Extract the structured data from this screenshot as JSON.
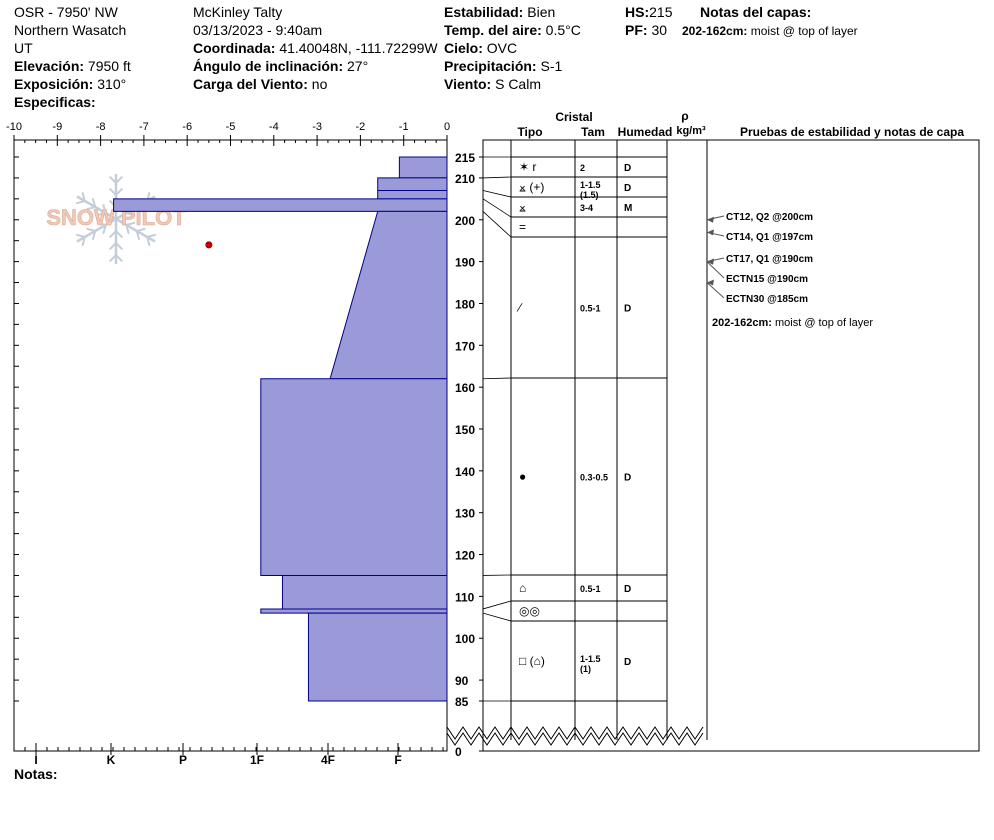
{
  "header": {
    "location": "OSR - 7950' NW",
    "range": "Northern Wasatch",
    "state": "UT",
    "elevation_label": "Elevación:",
    "elevation": "7950 ft",
    "aspect_label": "Exposición:",
    "aspect": "310°",
    "specifics_label": "Especificas:",
    "observer": "McKinley Talty",
    "datetime": "03/13/2023 - 9:40am",
    "coord_label": "Coordinada:",
    "coord": "41.40048N, -111.72299W",
    "slope_label": "Ángulo de inclinación:",
    "slope": "27°",
    "wind_load_label": "Carga del Viento:",
    "wind_load": "no",
    "stability_label": "Estabilidad:",
    "stability": "Bien",
    "air_temp_label": "Temp. del aire:",
    "air_temp": "0.5°C",
    "sky_label": "Cielo:",
    "sky": "OVC",
    "precip_label": "Precipitación:",
    "precip": "S-1",
    "wind_label": "Viento:",
    "wind": "S Calm",
    "hs_label": "HS:",
    "hs": "215",
    "pf_label": "PF:",
    "pf": "30",
    "layer_notes_label": "Notas del capas:",
    "layer_note_range": "202-162cm:",
    "layer_note_text": "moist @ top of layer"
  },
  "watermark": "SNOW PILOT",
  "notes_label": "Notas:",
  "colors": {
    "profile_fill": "#9a9ad8",
    "profile_stroke": "#00008b",
    "temp_point": "#cc0000",
    "test_arrow": "#555555"
  },
  "columns": {
    "crystal": "Cristal",
    "type": "Tipo",
    "size": "Tam",
    "moisture": "Humedad",
    "density_symbol": "ρ",
    "density_unit": "kg/m³",
    "tests": "Pruebas de estabilidad y notas de capa"
  },
  "chart_data": {
    "type": "snow-profile",
    "hardness_axis": {
      "label_ticks": [
        "-10",
        "-9",
        "-8",
        "-7",
        "-6",
        "-5",
        "-4",
        "-3",
        "-2",
        "-1",
        "0"
      ],
      "hardness_labels": [
        "I",
        "K",
        "P",
        "1F",
        "4F",
        "F"
      ],
      "note": "top axis shows snow temperature (°C); bottom axis shows hand hardness"
    },
    "depth_axis": {
      "ticks": [
        "215",
        "210",
        "200",
        "190",
        "180",
        "170",
        "160",
        "150",
        "140",
        "130",
        "120",
        "110",
        "100",
        "90",
        "85",
        "0"
      ],
      "range_cm": [
        0,
        215
      ]
    },
    "layers": [
      {
        "top": 215,
        "bottom": 210,
        "hardness": 1.1,
        "type_glyph": "✶ r",
        "size": "2",
        "moisture": "D"
      },
      {
        "top": 210,
        "bottom": 207,
        "hardness": 1.6,
        "type_glyph": "⨱ (+)",
        "size": "1-1.5 (1.5)",
        "moisture": "D"
      },
      {
        "top": 207,
        "bottom": 205,
        "hardness": 1.6,
        "type_glyph": "⨱",
        "size": "3-4",
        "moisture": "M"
      },
      {
        "top": 205,
        "bottom": 202,
        "hardness": 7.7,
        "type_glyph": "=",
        "size": "",
        "moisture": ""
      },
      {
        "top": 202,
        "bottom": 162,
        "hardness_top": 1.6,
        "hardness_bottom": 2.7,
        "type_glyph": "∕",
        "size": "0.5-1",
        "moisture": "D"
      },
      {
        "top": 162,
        "bottom": 115,
        "hardness": 4.3,
        "type_glyph": "●",
        "size": "0.3-0.5",
        "moisture": "D"
      },
      {
        "top": 115,
        "bottom": 107,
        "hardness": 3.8,
        "type_glyph": "⌂",
        "size": "0.5-1",
        "moisture": "D"
      },
      {
        "top": 107,
        "bottom": 106,
        "hardness": 4.3,
        "type_glyph": "◎◎",
        "size": "",
        "moisture": ""
      },
      {
        "top": 106,
        "bottom": 85,
        "hardness": 3.2,
        "type_glyph": "□ (⌂)",
        "size": "1-1.5 (1)",
        "moisture": "D"
      }
    ],
    "temperature_points": [
      {
        "depth": 194,
        "temp": -5.5
      }
    ],
    "stability_tests": [
      {
        "text": "CT12, Q2 @200cm",
        "depth": 200
      },
      {
        "text": "CT14, Q1 @197cm",
        "depth": 197
      },
      {
        "text": "CT17, Q1 @190cm",
        "depth": 190
      },
      {
        "text": "ECTN15 @190cm",
        "depth": 190
      },
      {
        "text": "ECTN30 @185cm",
        "depth": 185
      }
    ],
    "layer_notes": [
      {
        "range": "202-162cm:",
        "text": "moist @ top of layer"
      }
    ]
  }
}
